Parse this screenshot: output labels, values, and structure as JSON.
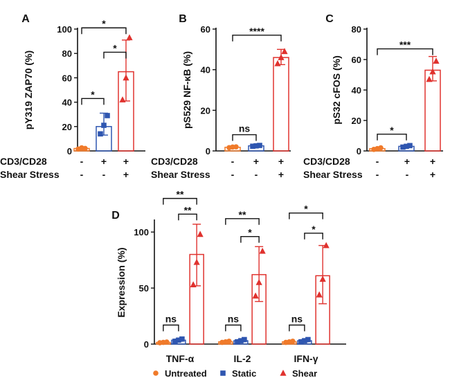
{
  "colors": {
    "untreated": "#f07a2a",
    "static": "#2f56b0",
    "shear": "#e0322e",
    "axis": "#111111"
  },
  "markers": {
    "untreated": "circle",
    "static": "square",
    "shear": "triangle"
  },
  "chart_data": [
    {
      "id": "A",
      "type": "bar",
      "panel_label": "A",
      "ylabel": "pY319 ZAP70 (%)",
      "ylim": [
        0,
        100
      ],
      "yticks": [
        0,
        20,
        40,
        60,
        80,
        100
      ],
      "groups": [
        "untreated",
        "static",
        "shear"
      ],
      "means": [
        2,
        20,
        65
      ],
      "err_low": [
        1,
        13,
        41
      ],
      "err_high": [
        3,
        31,
        91
      ],
      "points": [
        [
          1.5,
          2.5,
          2.0
        ],
        [
          14,
          21,
          29
        ],
        [
          42,
          60,
          93
        ]
      ],
      "conditions": [
        {
          "label": "CD3/CD28",
          "values": [
            "-",
            "+",
            "+"
          ]
        },
        {
          "label": "Shear Stress",
          "values": [
            "-",
            "-",
            "+"
          ]
        }
      ],
      "sig": [
        {
          "from": 1,
          "to": 2,
          "text": "*",
          "y": 81
        },
        {
          "from": 0,
          "to": 1,
          "text": "*",
          "y": 43
        },
        {
          "from": 0,
          "to": 2,
          "text": "*",
          "y": 101
        }
      ]
    },
    {
      "id": "B",
      "type": "bar",
      "panel_label": "B",
      "ylabel": "pS529 NF-κB (%)",
      "ylim": [
        0,
        60
      ],
      "yticks": [
        0,
        20,
        40,
        60
      ],
      "groups": [
        "untreated",
        "static",
        "shear"
      ],
      "means": [
        1.8,
        2.5,
        46
      ],
      "err_low": [
        1.5,
        2.2,
        42.5
      ],
      "err_high": [
        2.2,
        2.8,
        50
      ],
      "points": [
        [
          1.6,
          1.9,
          2.0
        ],
        [
          2.3,
          2.5,
          2.7
        ],
        [
          43,
          46,
          49
        ]
      ],
      "conditions": [
        {
          "label": "CD3/CD28",
          "values": [
            "-",
            "+",
            "+"
          ]
        },
        {
          "label": "Shear Stress",
          "values": [
            "-",
            "-",
            "+"
          ]
        }
      ],
      "sig": [
        {
          "from": 0,
          "to": 1,
          "text": "ns",
          "y": 8
        },
        {
          "from": 0,
          "to": 2,
          "text": "****",
          "y": 57
        }
      ]
    },
    {
      "id": "C",
      "type": "bar",
      "panel_label": "C",
      "ylabel": "pS32 cFOS (%)",
      "ylim": [
        0,
        80
      ],
      "yticks": [
        0,
        20,
        40,
        60,
        80
      ],
      "groups": [
        "untreated",
        "static",
        "shear"
      ],
      "means": [
        1.5,
        3,
        53
      ],
      "err_low": [
        1.0,
        2.2,
        46
      ],
      "err_high": [
        2.0,
        3.8,
        62
      ],
      "points": [
        [
          1.0,
          1.5,
          2.0
        ],
        [
          2.5,
          3.0,
          3.5
        ],
        [
          47,
          52,
          59
        ]
      ],
      "conditions": [
        {
          "label": "CD3/CD28",
          "values": [
            "-",
            "+",
            "+"
          ]
        },
        {
          "label": "Shear Stress",
          "values": [
            "-",
            "-",
            "+"
          ]
        }
      ],
      "sig": [
        {
          "from": 0,
          "to": 1,
          "text": "*",
          "y": 11
        },
        {
          "from": 0,
          "to": 2,
          "text": "***",
          "y": 67
        }
      ]
    },
    {
      "id": "D",
      "type": "bar",
      "panel_label": "D",
      "ylabel": "Expression (%)",
      "ylim": [
        0,
        110
      ],
      "yticks": [
        0,
        50,
        100
      ],
      "categories": [
        "TNF-α",
        "IL-2",
        "IFN-γ"
      ],
      "series": [
        {
          "name": "Untreated",
          "key": "untreated",
          "means": [
            1.5,
            2,
            2
          ],
          "err_low": [
            1.2,
            1.5,
            1.5
          ],
          "err_high": [
            1.8,
            2.5,
            2.5
          ],
          "points": [
            [
              1.2,
              1.5,
              1.8
            ],
            [
              1.5,
              2.0,
              2.5
            ],
            [
              1.5,
              2.0,
              2.5
            ]
          ]
        },
        {
          "name": "Static",
          "key": "static",
          "means": [
            3.5,
            3,
            3
          ],
          "err_low": [
            2.5,
            2,
            2
          ],
          "err_high": [
            4.5,
            4,
            4
          ],
          "points": [
            [
              2.5,
              3.5,
              4.5
            ],
            [
              2,
              3,
              4
            ],
            [
              2,
              3,
              4
            ]
          ]
        },
        {
          "name": "Shear",
          "key": "shear",
          "means": [
            80,
            62,
            61
          ],
          "err_low": [
            52,
            38,
            36
          ],
          "err_high": [
            107,
            87,
            88
          ],
          "points": [
            [
              53,
              73,
              98
            ],
            [
              43,
              55,
              83
            ],
            [
              44,
              58,
              88
            ]
          ]
        }
      ],
      "sig": [
        {
          "cat": 0,
          "from": 1,
          "to": 2,
          "text": "**",
          "y": 116
        },
        {
          "cat": 0,
          "from": 0,
          "to": 1,
          "text": "ns",
          "y": 17
        },
        {
          "cat": 0,
          "from": 0,
          "to": 2,
          "text": "**",
          "y": 130
        },
        {
          "cat": 1,
          "from": 1,
          "to": 2,
          "text": "*",
          "y": 96
        },
        {
          "cat": 1,
          "from": 0,
          "to": 1,
          "text": "ns",
          "y": 17
        },
        {
          "cat": 1,
          "from": 0,
          "to": 2,
          "text": "**",
          "y": 112
        },
        {
          "cat": 2,
          "from": 1,
          "to": 2,
          "text": "*",
          "y": 99
        },
        {
          "cat": 2,
          "from": 0,
          "to": 1,
          "text": "ns",
          "y": 17
        },
        {
          "cat": 2,
          "from": 0,
          "to": 2,
          "text": "*",
          "y": 117
        }
      ],
      "legend": {
        "placement": "bottom",
        "entries": [
          {
            "key": "untreated",
            "label": "Untreated"
          },
          {
            "key": "static",
            "label": "Static"
          },
          {
            "key": "shear",
            "label": "Shear"
          }
        ]
      }
    }
  ]
}
